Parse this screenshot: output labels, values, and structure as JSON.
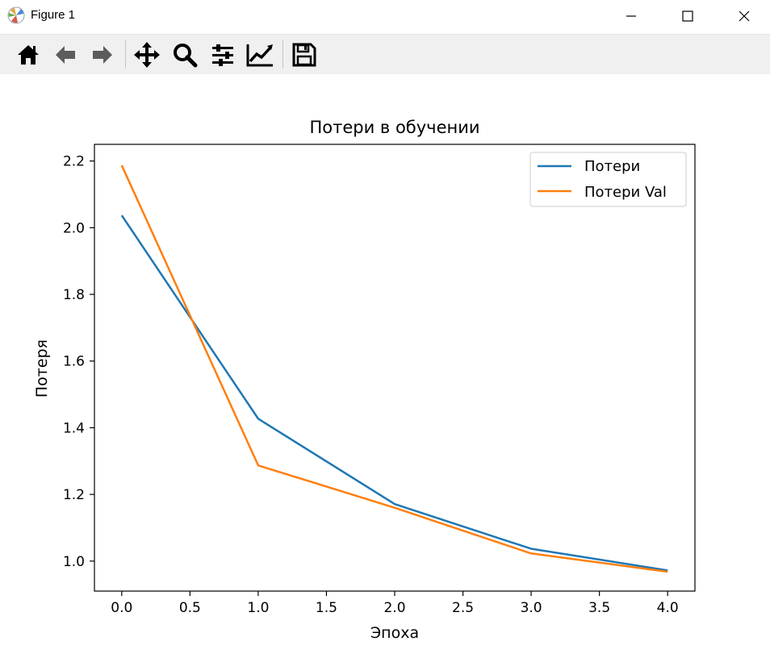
{
  "window": {
    "title": "Figure 1"
  },
  "toolbar": {
    "tools": [
      {
        "name": "home-icon"
      },
      {
        "name": "back-arrow-icon"
      },
      {
        "name": "forward-arrow-icon"
      },
      {
        "name": "pan-icon"
      },
      {
        "name": "zoom-icon"
      },
      {
        "name": "configure-subplots-icon"
      },
      {
        "name": "edit-axis-icon"
      },
      {
        "name": "save-icon"
      }
    ]
  },
  "chart_data": {
    "type": "line",
    "title": "Потери в обучении",
    "xlabel": "Эпоха",
    "ylabel": "Потеря",
    "x": [
      0,
      1,
      2,
      3,
      4
    ],
    "series": [
      {
        "name": "Потери",
        "values": [
          2.037,
          1.427,
          1.171,
          1.037,
          0.972
        ],
        "color": "#1f77b4"
      },
      {
        "name": "Потери Val",
        "values": [
          2.187,
          1.287,
          1.16,
          1.023,
          0.968
        ],
        "color": "#ff7f0e"
      }
    ],
    "xlim": [
      -0.2,
      4.2
    ],
    "ylim": [
      0.91,
      2.25
    ],
    "xticks": [
      "0.0",
      "0.5",
      "1.0",
      "1.5",
      "2.0",
      "2.5",
      "3.0",
      "3.5",
      "4.0"
    ],
    "yticks": [
      "1.0",
      "1.2",
      "1.4",
      "1.6",
      "1.8",
      "2.0",
      "2.2"
    ],
    "grid": false,
    "legend": "upper right"
  }
}
